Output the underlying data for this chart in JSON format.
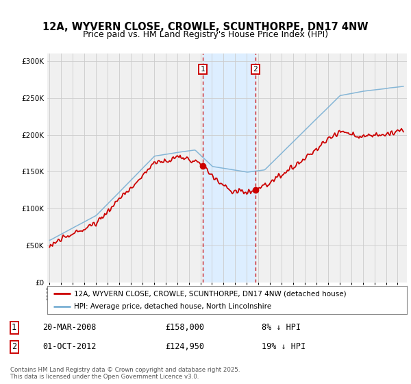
{
  "title1": "12A, WYVERN CLOSE, CROWLE, SCUNTHORPE, DN17 4NW",
  "title2": "Price paid vs. HM Land Registry's House Price Index (HPI)",
  "legend1": "12A, WYVERN CLOSE, CROWLE, SCUNTHORPE, DN17 4NW (detached house)",
  "legend2": "HPI: Average price, detached house, North Lincolnshire",
  "label1_date": "20-MAR-2008",
  "label1_price": "£158,000",
  "label1_hpi": "8% ↓ HPI",
  "label2_date": "01-OCT-2012",
  "label2_price": "£124,950",
  "label2_hpi": "19% ↓ HPI",
  "point1_x": 2008.22,
  "point1_y": 158000,
  "point2_x": 2012.75,
  "point2_y": 124950,
  "shade_x1": 2008.22,
  "shade_x2": 2012.75,
  "ylim": [
    0,
    310000
  ],
  "xlim_start": 1994.8,
  "xlim_end": 2025.8,
  "red_color": "#cc0000",
  "blue_color": "#7ab0d4",
  "shade_color": "#ddeeff",
  "bg_color": "#f0f0f0",
  "grid_color": "#cccccc",
  "footer": "Contains HM Land Registry data © Crown copyright and database right 2025.\nThis data is licensed under the Open Government Licence v3.0.",
  "title_fontsize": 10.5,
  "subtitle_fontsize": 9
}
